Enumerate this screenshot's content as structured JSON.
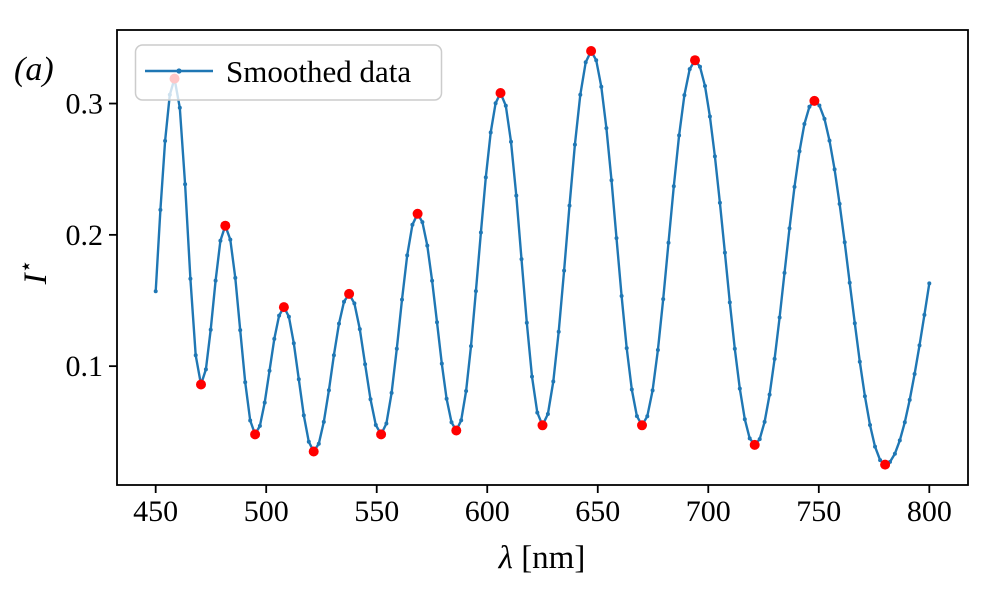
{
  "figure": {
    "panel_label": "(a)",
    "background_color": "#ffffff",
    "axis_color": "#000000"
  },
  "chart_data": {
    "type": "line",
    "title": "",
    "xlabel": "λ [nm]",
    "xlabel_symbol": "λ",
    "xlabel_unit": " [nm]",
    "ylabel": "I⋆",
    "ylabel_base": "I",
    "ylabel_sup": "⋆",
    "xlim": [
      432.5,
      817.5
    ],
    "ylim": [
      0.0095,
      0.356
    ],
    "xticks": [
      450,
      500,
      550,
      600,
      650,
      700,
      750,
      800
    ],
    "yticks": [
      0.1,
      0.2,
      0.3
    ],
    "grid": false,
    "legend_position": "upper left",
    "legend": [
      {
        "label": "Smoothed data",
        "color": "#1f77b4"
      }
    ],
    "extrema_color": "#ff0000",
    "series": [
      {
        "name": "Smoothed data",
        "color": "#1f77b4",
        "marker": "dot",
        "sample_step_nm": 2.33,
        "start": [
          450,
          0.157
        ],
        "end": [
          800,
          0.163
        ],
        "maxima": [
          [
            458.5,
            0.319
          ],
          [
            481.5,
            0.207
          ],
          [
            508.0,
            0.145
          ],
          [
            537.5,
            0.155
          ],
          [
            568.5,
            0.216
          ],
          [
            606.0,
            0.308
          ],
          [
            647.0,
            0.34
          ],
          [
            694.0,
            0.333
          ],
          [
            748.0,
            0.302
          ]
        ],
        "minima": [
          [
            470.5,
            0.086
          ],
          [
            495.0,
            0.048
          ],
          [
            521.5,
            0.035
          ],
          [
            552.0,
            0.048
          ],
          [
            586.0,
            0.051
          ],
          [
            625.0,
            0.055
          ],
          [
            670.0,
            0.055
          ],
          [
            721.0,
            0.04
          ],
          [
            780.0,
            0.025
          ]
        ]
      }
    ]
  }
}
